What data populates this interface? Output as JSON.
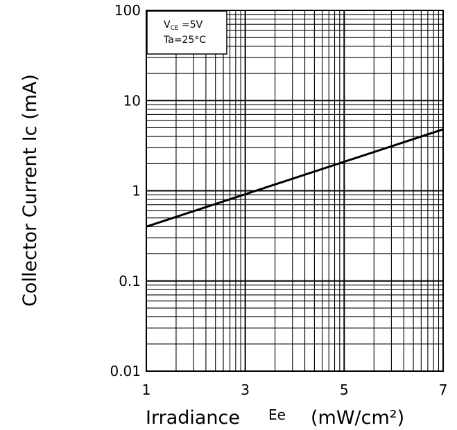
{
  "chart_data": {
    "type": "line",
    "title": "",
    "xlabel": "Irradiance",
    "xlabel_symbol": "Ee",
    "xlabel_unit": "(mW/cm²)",
    "ylabel": "Collector Current Ic (mA)",
    "xlim": [
      1,
      7
    ],
    "ylim": [
      0.01,
      100
    ],
    "yscale": "log",
    "grid": true,
    "x_ticks": [
      "1",
      "3",
      "5",
      "7"
    ],
    "y_ticks": [
      "0.01",
      "0.1",
      "1",
      "10",
      "100"
    ],
    "conditions": {
      "line1_main": "V",
      "line1_sub": "CE",
      "line1_rest": " =5V",
      "line2": "Ta=25°C"
    },
    "series": [
      {
        "x": [
          1,
          7
        ],
        "y": [
          0.4,
          4.8
        ]
      }
    ]
  }
}
